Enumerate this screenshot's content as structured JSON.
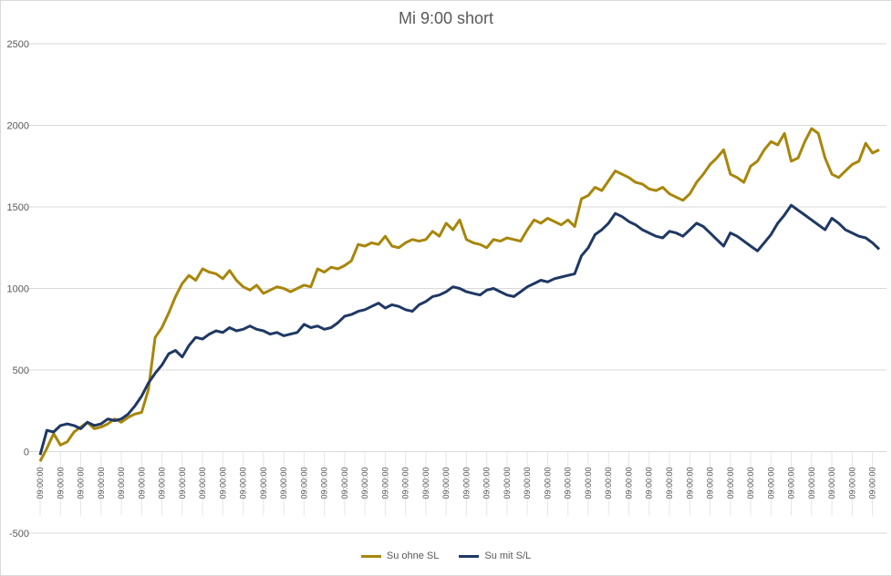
{
  "chart_data": {
    "type": "line",
    "title": "Mi 9:00 short",
    "xlabel": "",
    "ylabel": "",
    "ylim": [
      -500,
      2500
    ],
    "yticks": [
      2500,
      2000,
      1500,
      1000,
      500,
      0,
      -500
    ],
    "grid": true,
    "legend_position": "bottom",
    "x_tick_label": "09:00:00",
    "series": [
      {
        "name": "Su ohne SL",
        "color": "#a8860a",
        "points": [
          [
            0,
            -60
          ],
          [
            1,
            20
          ],
          [
            2,
            110
          ],
          [
            3,
            40
          ],
          [
            4,
            60
          ],
          [
            5,
            120
          ],
          [
            6,
            150
          ],
          [
            7,
            180
          ],
          [
            8,
            140
          ],
          [
            9,
            150
          ],
          [
            10,
            170
          ],
          [
            11,
            200
          ],
          [
            12,
            180
          ],
          [
            13,
            210
          ],
          [
            14,
            230
          ],
          [
            15,
            240
          ],
          [
            16,
            380
          ],
          [
            17,
            700
          ],
          [
            18,
            760
          ],
          [
            19,
            850
          ],
          [
            20,
            950
          ],
          [
            21,
            1030
          ],
          [
            22,
            1080
          ],
          [
            23,
            1050
          ],
          [
            24,
            1120
          ],
          [
            25,
            1100
          ],
          [
            26,
            1090
          ],
          [
            27,
            1060
          ],
          [
            28,
            1110
          ],
          [
            29,
            1050
          ],
          [
            30,
            1010
          ],
          [
            31,
            990
          ],
          [
            32,
            1020
          ],
          [
            33,
            970
          ],
          [
            34,
            990
          ],
          [
            35,
            1010
          ],
          [
            36,
            1000
          ],
          [
            37,
            980
          ],
          [
            38,
            1000
          ],
          [
            39,
            1020
          ],
          [
            40,
            1010
          ],
          [
            41,
            1120
          ],
          [
            42,
            1100
          ],
          [
            43,
            1130
          ],
          [
            44,
            1120
          ],
          [
            45,
            1140
          ],
          [
            46,
            1170
          ],
          [
            47,
            1270
          ],
          [
            48,
            1260
          ],
          [
            49,
            1280
          ],
          [
            50,
            1270
          ],
          [
            51,
            1320
          ],
          [
            52,
            1260
          ],
          [
            53,
            1250
          ],
          [
            54,
            1280
          ],
          [
            55,
            1300
          ],
          [
            56,
            1290
          ],
          [
            57,
            1300
          ],
          [
            58,
            1350
          ],
          [
            59,
            1320
          ],
          [
            60,
            1400
          ],
          [
            61,
            1360
          ],
          [
            62,
            1420
          ],
          [
            63,
            1300
          ],
          [
            64,
            1280
          ],
          [
            65,
            1270
          ],
          [
            66,
            1250
          ],
          [
            67,
            1300
          ],
          [
            68,
            1290
          ],
          [
            69,
            1310
          ],
          [
            70,
            1300
          ],
          [
            71,
            1290
          ],
          [
            72,
            1360
          ],
          [
            73,
            1420
          ],
          [
            74,
            1400
          ],
          [
            75,
            1430
          ],
          [
            76,
            1410
          ],
          [
            77,
            1390
          ],
          [
            78,
            1420
          ],
          [
            79,
            1380
          ],
          [
            80,
            1550
          ],
          [
            81,
            1570
          ],
          [
            82,
            1620
          ],
          [
            83,
            1600
          ],
          [
            84,
            1660
          ],
          [
            85,
            1720
          ],
          [
            86,
            1700
          ],
          [
            87,
            1680
          ],
          [
            88,
            1650
          ],
          [
            89,
            1640
          ],
          [
            90,
            1610
          ],
          [
            91,
            1600
          ],
          [
            92,
            1620
          ],
          [
            93,
            1580
          ],
          [
            94,
            1560
          ],
          [
            95,
            1540
          ],
          [
            96,
            1580
          ],
          [
            97,
            1650
          ],
          [
            98,
            1700
          ],
          [
            99,
            1760
          ],
          [
            100,
            1800
          ],
          [
            101,
            1850
          ],
          [
            102,
            1700
          ],
          [
            103,
            1680
          ],
          [
            104,
            1650
          ],
          [
            105,
            1750
          ],
          [
            106,
            1780
          ],
          [
            107,
            1850
          ],
          [
            108,
            1900
          ],
          [
            109,
            1880
          ],
          [
            110,
            1950
          ],
          [
            111,
            1780
          ],
          [
            112,
            1800
          ],
          [
            113,
            1900
          ],
          [
            114,
            1980
          ],
          [
            115,
            1950
          ],
          [
            116,
            1800
          ],
          [
            117,
            1700
          ],
          [
            118,
            1680
          ],
          [
            119,
            1720
          ],
          [
            120,
            1760
          ],
          [
            121,
            1780
          ],
          [
            122,
            1890
          ],
          [
            123,
            1830
          ],
          [
            124,
            1850
          ]
        ]
      },
      {
        "name": "Su mit S/L",
        "color": "#1f3864",
        "points": [
          [
            0,
            -20
          ],
          [
            1,
            130
          ],
          [
            2,
            120
          ],
          [
            3,
            160
          ],
          [
            4,
            170
          ],
          [
            5,
            160
          ],
          [
            6,
            140
          ],
          [
            7,
            180
          ],
          [
            8,
            160
          ],
          [
            9,
            170
          ],
          [
            10,
            200
          ],
          [
            11,
            190
          ],
          [
            12,
            200
          ],
          [
            13,
            230
          ],
          [
            14,
            280
          ],
          [
            15,
            340
          ],
          [
            16,
            420
          ],
          [
            17,
            480
          ],
          [
            18,
            530
          ],
          [
            19,
            600
          ],
          [
            20,
            620
          ],
          [
            21,
            580
          ],
          [
            22,
            650
          ],
          [
            23,
            700
          ],
          [
            24,
            690
          ],
          [
            25,
            720
          ],
          [
            26,
            740
          ],
          [
            27,
            730
          ],
          [
            28,
            760
          ],
          [
            29,
            740
          ],
          [
            30,
            750
          ],
          [
            31,
            770
          ],
          [
            32,
            750
          ],
          [
            33,
            740
          ],
          [
            34,
            720
          ],
          [
            35,
            730
          ],
          [
            36,
            710
          ],
          [
            37,
            720
          ],
          [
            38,
            730
          ],
          [
            39,
            780
          ],
          [
            40,
            760
          ],
          [
            41,
            770
          ],
          [
            42,
            750
          ],
          [
            43,
            760
          ],
          [
            44,
            790
          ],
          [
            45,
            830
          ],
          [
            46,
            840
          ],
          [
            47,
            860
          ],
          [
            48,
            870
          ],
          [
            49,
            890
          ],
          [
            50,
            910
          ],
          [
            51,
            880
          ],
          [
            52,
            900
          ],
          [
            53,
            890
          ],
          [
            54,
            870
          ],
          [
            55,
            860
          ],
          [
            56,
            900
          ],
          [
            57,
            920
          ],
          [
            58,
            950
          ],
          [
            59,
            960
          ],
          [
            60,
            980
          ],
          [
            61,
            1010
          ],
          [
            62,
            1000
          ],
          [
            63,
            980
          ],
          [
            64,
            970
          ],
          [
            65,
            960
          ],
          [
            66,
            990
          ],
          [
            67,
            1000
          ],
          [
            68,
            980
          ],
          [
            69,
            960
          ],
          [
            70,
            950
          ],
          [
            71,
            980
          ],
          [
            72,
            1010
          ],
          [
            73,
            1030
          ],
          [
            74,
            1050
          ],
          [
            75,
            1040
          ],
          [
            76,
            1060
          ],
          [
            77,
            1070
          ],
          [
            78,
            1080
          ],
          [
            79,
            1090
          ],
          [
            80,
            1200
          ],
          [
            81,
            1250
          ],
          [
            82,
            1330
          ],
          [
            83,
            1360
          ],
          [
            84,
            1400
          ],
          [
            85,
            1460
          ],
          [
            86,
            1440
          ],
          [
            87,
            1410
          ],
          [
            88,
            1390
          ],
          [
            89,
            1360
          ],
          [
            90,
            1340
          ],
          [
            91,
            1320
          ],
          [
            92,
            1310
          ],
          [
            93,
            1350
          ],
          [
            94,
            1340
          ],
          [
            95,
            1320
          ],
          [
            96,
            1360
          ],
          [
            97,
            1400
          ],
          [
            98,
            1380
          ],
          [
            99,
            1340
          ],
          [
            100,
            1300
          ],
          [
            101,
            1260
          ],
          [
            102,
            1340
          ],
          [
            103,
            1320
          ],
          [
            104,
            1290
          ],
          [
            105,
            1260
          ],
          [
            106,
            1230
          ],
          [
            107,
            1280
          ],
          [
            108,
            1330
          ],
          [
            109,
            1400
          ],
          [
            110,
            1450
          ],
          [
            111,
            1510
          ],
          [
            112,
            1480
          ],
          [
            113,
            1450
          ],
          [
            114,
            1420
          ],
          [
            115,
            1390
          ],
          [
            116,
            1360
          ],
          [
            117,
            1430
          ],
          [
            118,
            1400
          ],
          [
            119,
            1360
          ],
          [
            120,
            1340
          ],
          [
            121,
            1320
          ],
          [
            122,
            1310
          ],
          [
            123,
            1280
          ],
          [
            124,
            1240
          ]
        ]
      }
    ]
  }
}
